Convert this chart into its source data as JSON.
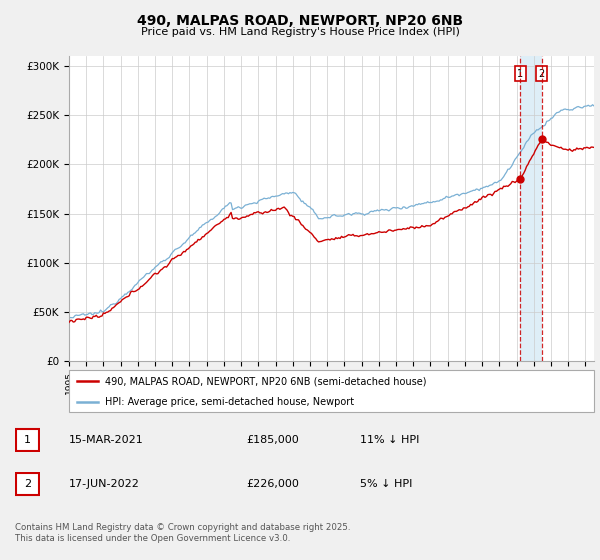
{
  "title": "490, MALPAS ROAD, NEWPORT, NP20 6NB",
  "subtitle": "Price paid vs. HM Land Registry's House Price Index (HPI)",
  "ylim": [
    0,
    310000
  ],
  "yticks": [
    0,
    50000,
    100000,
    150000,
    200000,
    250000,
    300000
  ],
  "ytick_labels": [
    "£0",
    "£50K",
    "£100K",
    "£150K",
    "£200K",
    "£250K",
    "£300K"
  ],
  "background_color": "#f0f0f0",
  "plot_bg_color": "#ffffff",
  "legend1_label": "490, MALPAS ROAD, NEWPORT, NP20 6NB (semi-detached house)",
  "legend2_label": "HPI: Average price, semi-detached house, Newport",
  "annotation_footer": "Contains HM Land Registry data © Crown copyright and database right 2025.\nThis data is licensed under the Open Government Licence v3.0.",
  "transaction1_date": "15-MAR-2021",
  "transaction1_price": "£185,000",
  "transaction1_hpi": "11% ↓ HPI",
  "transaction2_date": "17-JUN-2022",
  "transaction2_price": "£226,000",
  "transaction2_hpi": "5% ↓ HPI",
  "vline1_x": 2021.21,
  "vline2_x": 2022.46,
  "marker1_red_y": 185000,
  "marker2_red_y": 226000,
  "red_color": "#cc0000",
  "blue_color": "#7ab0d4",
  "vline_color": "#cc0000",
  "shade_color": "#d0e8f5",
  "xlim_left": 1995,
  "xlim_right": 2025.5
}
